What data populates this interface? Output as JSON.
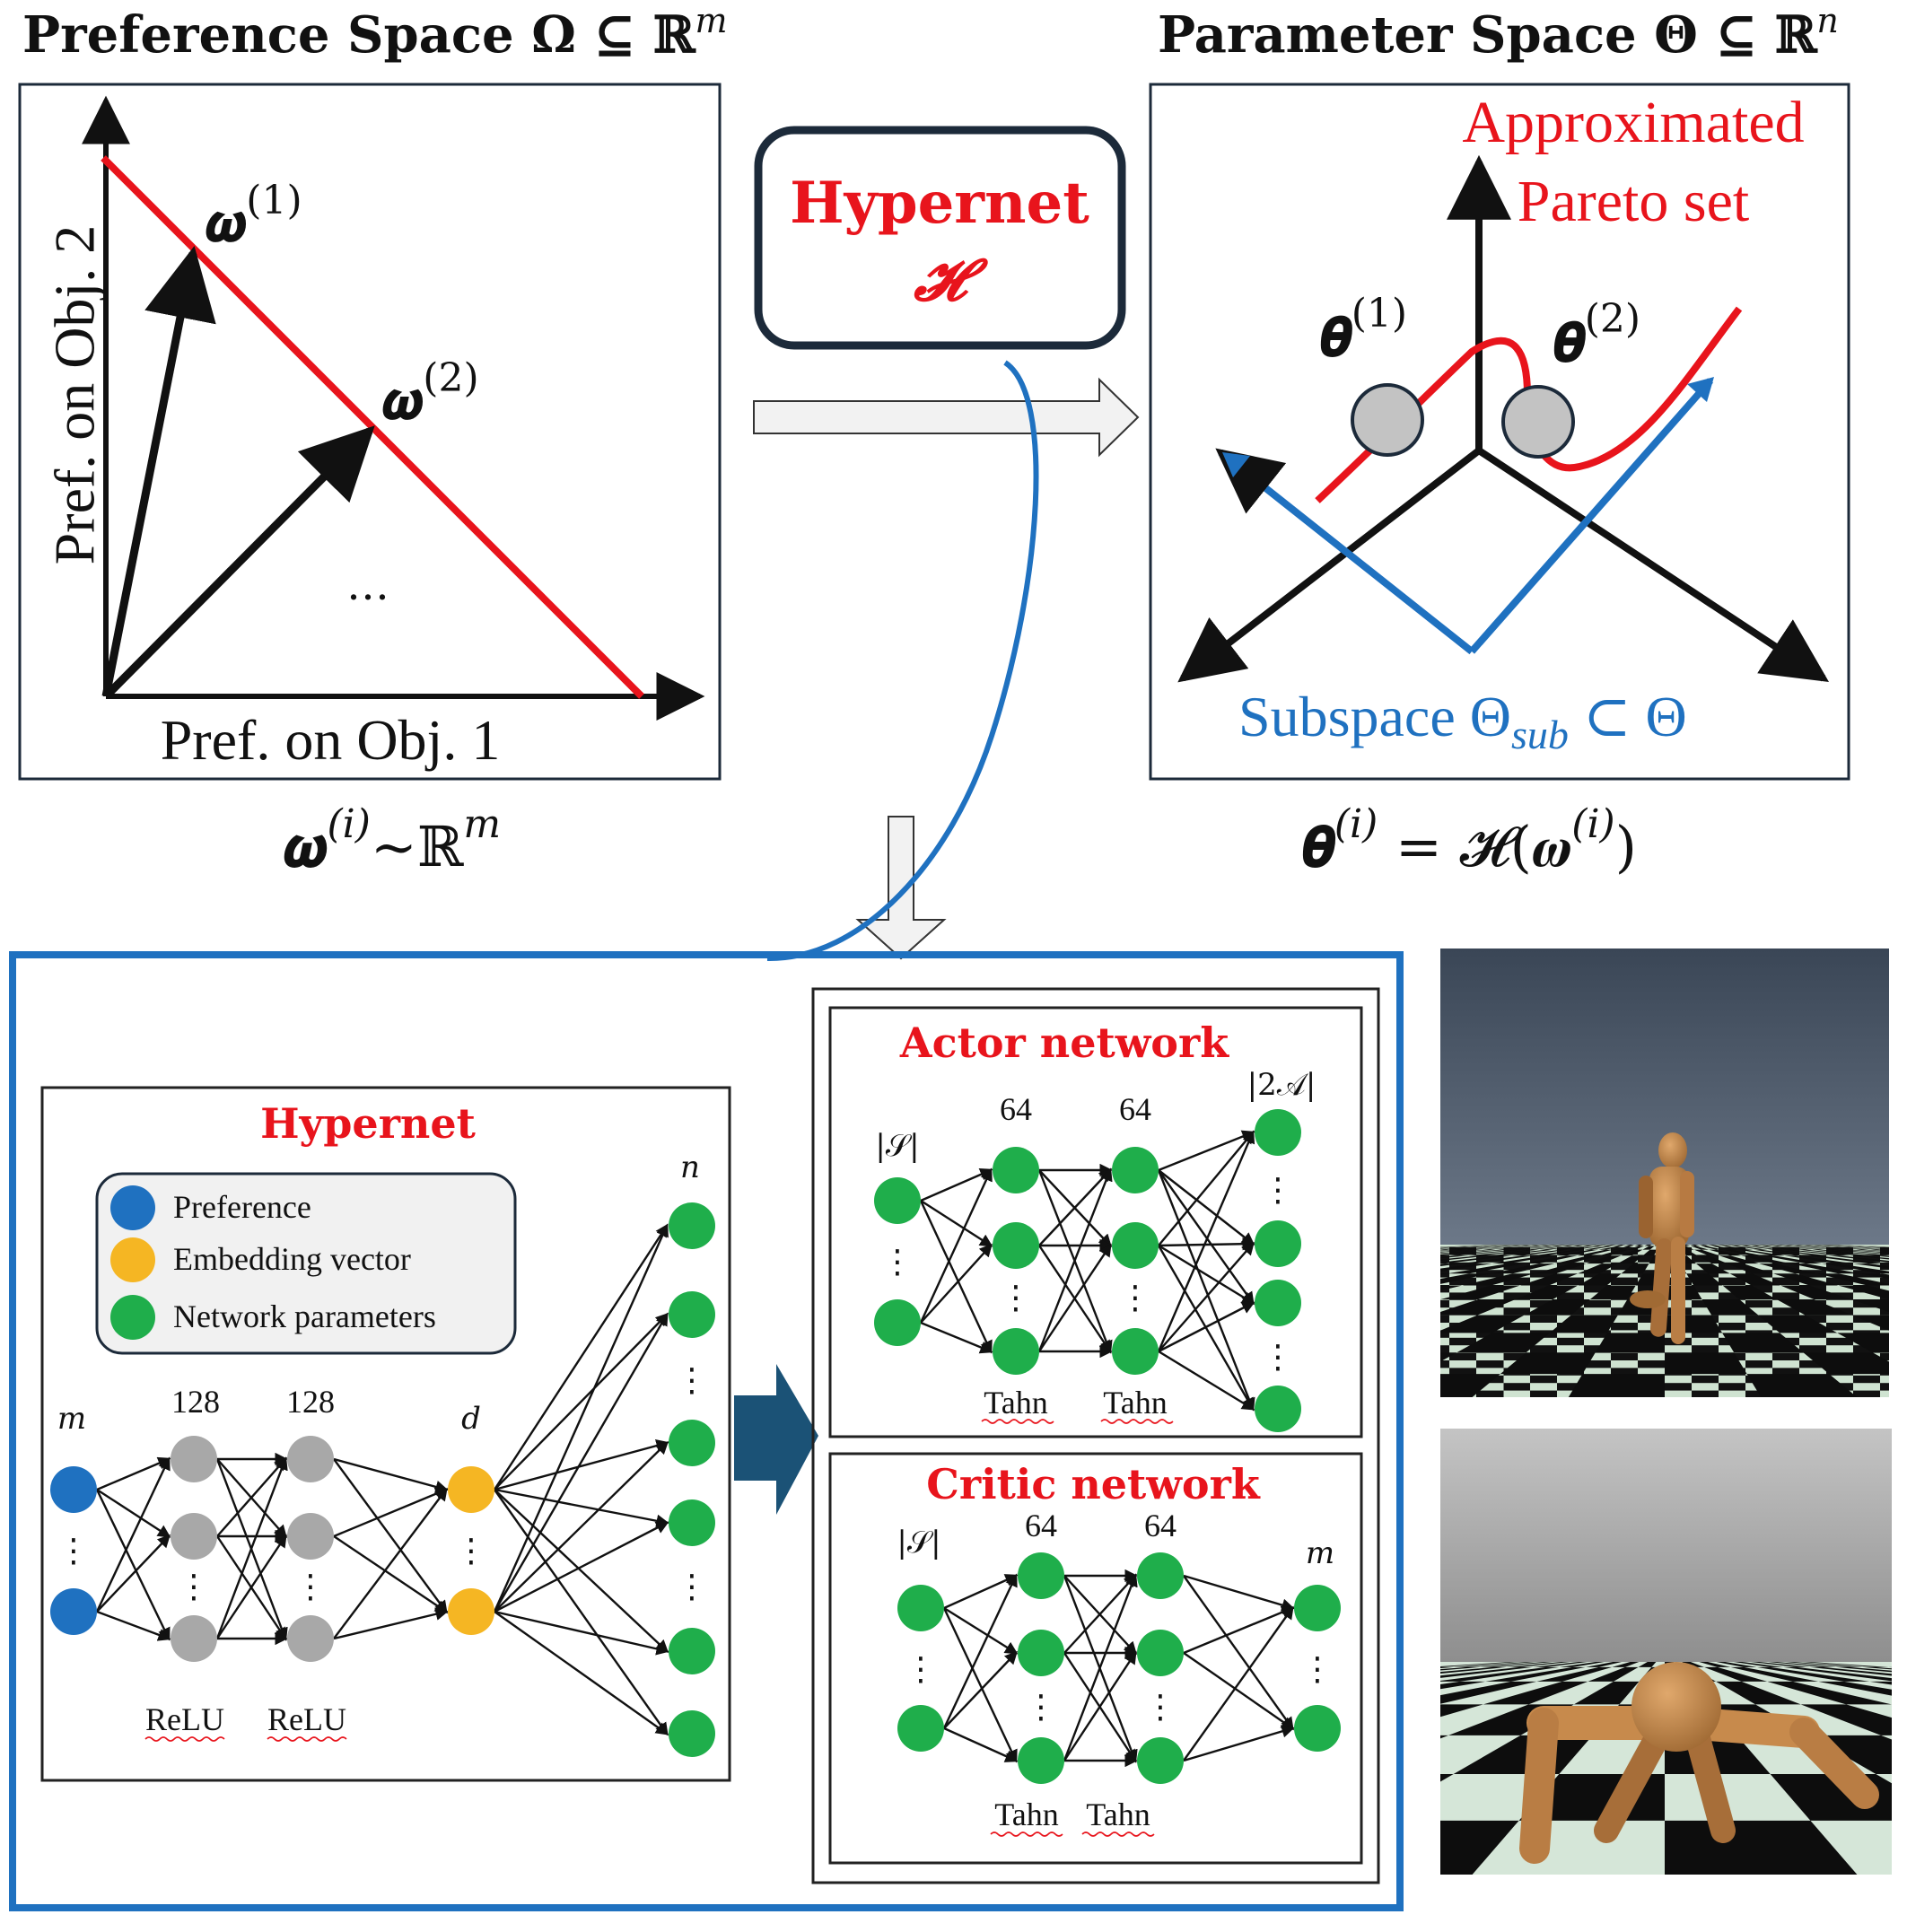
{
  "colors": {
    "red": "#e8141c",
    "blue": "#1f71c0",
    "black": "#111111",
    "navy": "#1c2a3a",
    "green": "#1fae4b",
    "orange": "#f5b623",
    "gray": "#a8a8a8",
    "darkblue_arrow": "#1b5276"
  },
  "pref_space": {
    "title": "Preference Space Ω ⊆ ℝ",
    "title_sup": "m",
    "y_label": "Pref. on Obj. 2",
    "x_label": "Pref. on Obj. 1",
    "omega1": "𝝎",
    "omega1_sup": "(1)",
    "omega2": "𝝎",
    "omega2_sup": "(2)",
    "dots": "…",
    "caption": "𝝎",
    "caption_sup": "(i)",
    "caption_rest": "~ℝ",
    "caption_sup2": "m"
  },
  "hypernet_box": {
    "title": "Hypernet",
    "symbol": "𝓗"
  },
  "param_space": {
    "title": "Parameter Space Θ ⊆ ℝ",
    "title_sup": "n",
    "approx1": "Approximated",
    "approx2": "Pareto set",
    "theta1": "𝜽",
    "theta1_sup": "(1)",
    "theta2": "𝜽",
    "theta2_sup": "(2)",
    "subspace": "Subspace Θ",
    "subspace_sub": "sub",
    "subspace_rest": " ⊂ Θ",
    "caption_a": "𝜽",
    "caption_a_sup": "(i)",
    "caption_b": " = 𝓗(𝝎",
    "caption_b_sup": "(i)",
    "caption_c": ")"
  },
  "hypernet_detail": {
    "title": "Hypernet",
    "legend": [
      "Preference",
      "Embedding vector",
      "Network parameters"
    ],
    "labels": {
      "m": "m",
      "h1": "128",
      "h2": "128",
      "d": "d",
      "n": "n"
    },
    "acts": [
      "ReLU",
      "ReLU"
    ],
    "vdots": "⋮"
  },
  "actor": {
    "title": "Actor network",
    "labels": {
      "in": "|𝒮|",
      "h1": "64",
      "h2": "64",
      "out": "|2𝒜|"
    },
    "acts": [
      "Tahn",
      "Tahn"
    ]
  },
  "critic": {
    "title": "Critic network",
    "labels": {
      "in": "|𝒮|",
      "h1": "64",
      "h2": "64",
      "out": "m"
    },
    "acts": [
      "Tahn",
      "Tahn"
    ]
  }
}
